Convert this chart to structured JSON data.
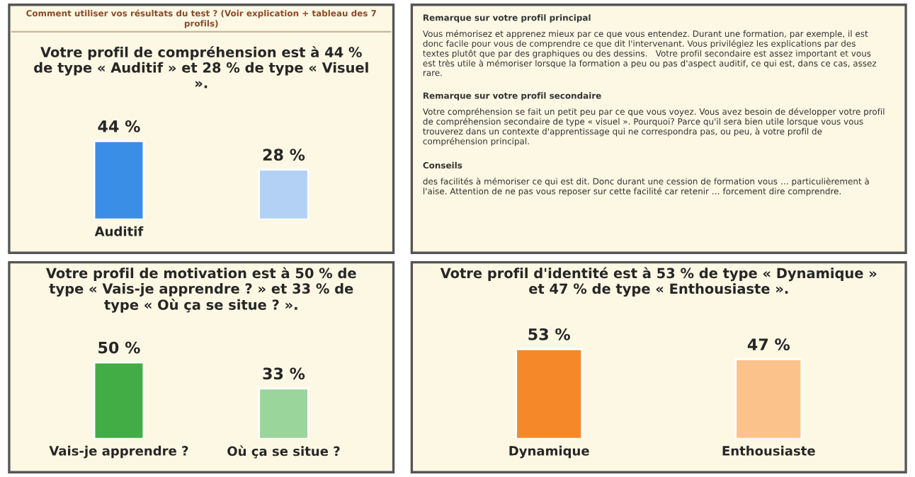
{
  "chart_data": [
    {
      "type": "bar",
      "title": "Votre profil de compréhension est à 44 % de type « Auditif » et 28 % de type « Visuel ».",
      "annotations": [
        "Comment utiliser vos résultats du test ? (Voir explication + tableau des 7 profils)"
      ],
      "categories": [
        "Auditif",
        null
      ],
      "values": [
        44,
        28
      ],
      "colors": [
        "#3a8ee6",
        "#b3d1f5"
      ],
      "value_labels": [
        "44 %",
        "28 %"
      ]
    },
    {
      "type": "other",
      "annotations": [
        "Remarque sur votre profil principal",
        "Vous mémorisez et apprenez mieux par ce que vous entendez. Durant une formation, par exemple, il est donc facile pour vous de comprendre ce que dit l'intervenant. Vous privilégiez les explications par des textes plutôt que par des graphiques ou des dessins.   Votre profil secondaire est assez important et vous est très utile à mémoriser lorsque la formation a peu ou pas d'aspect auditif, ce qui est, dans ce cas, assez rare.",
        "Remarque sur votre profil secondaire",
        "Votre compréhension se fait un petit peu par ce que vous voyez. Vous avez besoin de développer votre profil de compréhension secondaire de type « visuel ». Pourquoi? Parce qu'il sera bien utile lorsque vous vous trouverez dans un contexte d'apprentissage qui ne correspondra pas, ou peu, à votre profil de compréhension principal.",
        "Conseils",
        "des facilités à mémoriser ce qui est dit. Donc durant une cession de formation vous … particulièrement à l'aise. Attention de ne pas vous reposer sur cette facilité car retenir … forcement dire comprendre."
      ]
    },
    {
      "type": "bar",
      "title": "Votre profil de motivation est à 50 % de type « Vais-je apprendre ? » et 33 % de type « Où ça se situe ? ».",
      "categories": [
        "Vais-je apprendre ?",
        "Où ça se situe ?"
      ],
      "values": [
        50,
        33
      ],
      "colors": [
        "#43ad45",
        "#9ad69c"
      ],
      "value_labels": [
        "50 %",
        "33 %"
      ]
    },
    {
      "type": "bar",
      "title": "Votre profil d'identité est à 53 % de type « Dynamique » et 47 % de type « Enthousiaste ».",
      "categories": [
        "Dynamique",
        "Enthousiaste"
      ],
      "values": [
        53,
        47
      ],
      "colors": [
        "#f5892a",
        "#fcc28c"
      ],
      "value_labels": [
        "53 %",
        "47 %"
      ]
    }
  ]
}
